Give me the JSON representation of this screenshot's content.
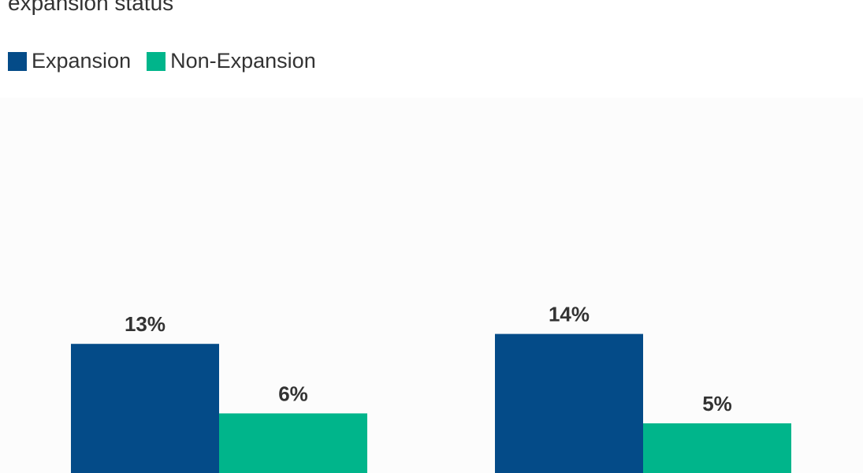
{
  "chart_data": {
    "type": "bar",
    "title": "expansion status",
    "categories": [
      "",
      ""
    ],
    "series": [
      {
        "name": "Expansion",
        "color": "#044b88",
        "values": [
          13,
          14
        ],
        "labels": [
          "13%",
          "14%"
        ]
      },
      {
        "name": "Non-Expansion",
        "color": "#00b58b",
        "values": [
          6,
          5
        ],
        "labels": [
          "6%",
          "5%"
        ]
      }
    ],
    "ylim": [
      0,
      18.5
    ],
    "xlabel": "",
    "ylabel": "",
    "legend_position": "top-left"
  }
}
